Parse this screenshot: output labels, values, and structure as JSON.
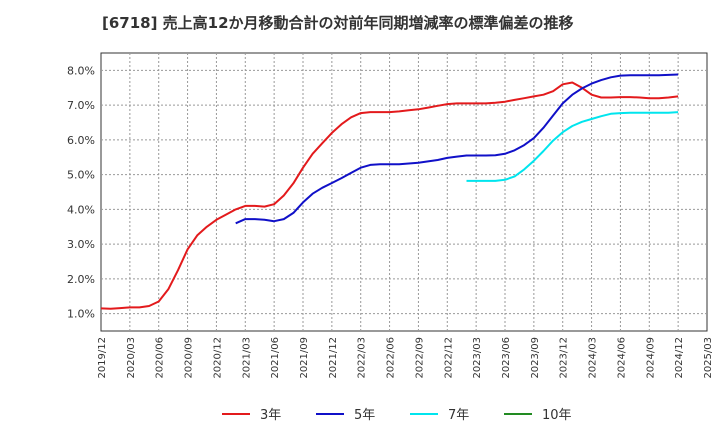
{
  "chart_data": {
    "type": "line",
    "title": "[6718]  売上高12か月移動合計の対前年同期増減率の標準偏差の推移",
    "xlabel": "",
    "ylabel": "",
    "ylim": [
      0.5,
      8.5
    ],
    "yticks": [
      1.0,
      2.0,
      3.0,
      4.0,
      5.0,
      6.0,
      7.0,
      8.0
    ],
    "ytick_labels": [
      "1.0%",
      "2.0%",
      "3.0%",
      "4.0%",
      "5.0%",
      "6.0%",
      "7.0%",
      "8.0%"
    ],
    "x_ticks": [
      "2019/12",
      "2020/03",
      "2020/06",
      "2020/09",
      "2020/12",
      "2021/03",
      "2021/06",
      "2021/09",
      "2021/12",
      "2022/03",
      "2022/06",
      "2022/09",
      "2022/12",
      "2023/03",
      "2023/06",
      "2023/09",
      "2023/12",
      "2024/03",
      "2024/06",
      "2024/09",
      "2024/12",
      "2025/03"
    ],
    "grid": true,
    "legend_position": "bottom",
    "series": [
      {
        "name": "3年",
        "color": "#e31a1c",
        "start": "2019/12",
        "values": [
          1.15,
          1.14,
          1.16,
          1.18,
          1.18,
          1.22,
          1.35,
          1.7,
          2.25,
          2.85,
          3.25,
          3.5,
          3.7,
          3.85,
          4.0,
          4.1,
          4.1,
          4.08,
          4.15,
          4.4,
          4.75,
          5.2,
          5.6,
          5.9,
          6.2,
          6.45,
          6.65,
          6.77,
          6.8,
          6.8,
          6.8,
          6.82,
          6.85,
          6.88,
          6.93,
          6.98,
          7.03,
          7.05,
          7.05,
          7.05,
          7.05,
          7.07,
          7.1,
          7.15,
          7.2,
          7.25,
          7.3,
          7.4,
          7.6,
          7.65,
          7.5,
          7.3,
          7.22,
          7.22,
          7.23,
          7.23,
          7.22,
          7.2,
          7.2,
          7.22,
          7.25
        ]
      },
      {
        "name": "5年",
        "color": "#1010c8",
        "start": "2021/02",
        "values": [
          3.6,
          3.72,
          3.72,
          3.7,
          3.66,
          3.72,
          3.9,
          4.2,
          4.45,
          4.62,
          4.76,
          4.9,
          5.05,
          5.2,
          5.28,
          5.3,
          5.3,
          5.3,
          5.32,
          5.34,
          5.38,
          5.42,
          5.48,
          5.52,
          5.55,
          5.55,
          5.55,
          5.56,
          5.6,
          5.7,
          5.85,
          6.05,
          6.35,
          6.7,
          7.05,
          7.3,
          7.48,
          7.62,
          7.72,
          7.8,
          7.85,
          7.86,
          7.86,
          7.86,
          7.86,
          7.87,
          7.88
        ]
      },
      {
        "name": "7年",
        "color": "#00e5ee",
        "start": "2023/02",
        "values": [
          4.82,
          4.82,
          4.82,
          4.82,
          4.85,
          4.95,
          5.15,
          5.4,
          5.68,
          5.98,
          6.22,
          6.4,
          6.52,
          6.6,
          6.68,
          6.75,
          6.77,
          6.78,
          6.78,
          6.78,
          6.78,
          6.78,
          6.8
        ]
      },
      {
        "name": "10年",
        "color": "#228b22",
        "start": "2024/12",
        "values": []
      }
    ]
  }
}
